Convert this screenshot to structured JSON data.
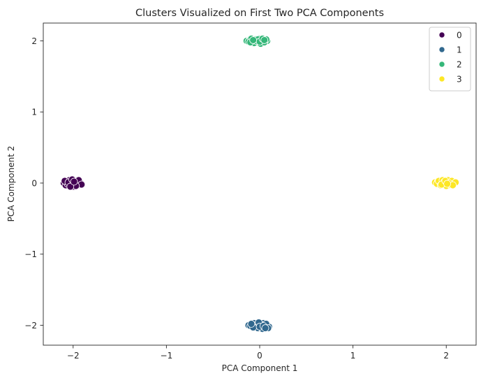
{
  "chart_data": {
    "type": "scatter",
    "title": "Clusters Visualized on First Two PCA Components",
    "xlabel": "PCA Component 1",
    "ylabel": "PCA Component 2",
    "xlim": [
      -2.32,
      2.32
    ],
    "ylim": [
      -2.28,
      2.25
    ],
    "xticks": [
      -2,
      -1,
      0,
      1,
      2
    ],
    "yticks": [
      -2,
      -1,
      0,
      1,
      2
    ],
    "xtick_labels": [
      "−2",
      "−1",
      "0",
      "1",
      "2"
    ],
    "ytick_labels": [
      "−2",
      "−1",
      "0",
      "1",
      "2"
    ],
    "grid": false,
    "legend_position": "top-right",
    "series": [
      {
        "name": "0",
        "color": "#440154",
        "points": [
          [
            -2.1,
            0.0
          ],
          [
            -2.07,
            0.02
          ],
          [
            -2.05,
            -0.02
          ],
          [
            -2.03,
            0.01
          ],
          [
            -2.01,
            -0.03
          ],
          [
            -1.99,
            0.0
          ],
          [
            -1.97,
            0.03
          ],
          [
            -1.95,
            -0.01
          ],
          [
            -1.93,
            0.02
          ],
          [
            -2.08,
            -0.03
          ],
          [
            -2.04,
            0.04
          ],
          [
            -2.0,
            -0.05
          ],
          [
            -1.96,
            -0.04
          ],
          [
            -1.92,
            0.0
          ],
          [
            -2.06,
            -0.01
          ],
          [
            -2.02,
            0.03
          ],
          [
            -1.98,
            -0.02
          ],
          [
            -1.94,
            0.04
          ],
          [
            -1.91,
            -0.02
          ],
          [
            -2.09,
            0.03
          ],
          [
            -2.05,
            0.01
          ],
          [
            -2.01,
            0.05
          ],
          [
            -1.97,
            -0.04
          ],
          [
            -2.03,
            -0.05
          ],
          [
            -1.99,
            0.02
          ]
        ]
      },
      {
        "name": "1",
        "color": "#31688e",
        "points": [
          [
            -0.12,
            -2.0
          ],
          [
            -0.08,
            -1.99
          ],
          [
            -0.05,
            -2.02
          ],
          [
            -0.03,
            -1.98
          ],
          [
            0.0,
            -2.01
          ],
          [
            0.02,
            -2.03
          ],
          [
            0.04,
            -1.97
          ],
          [
            0.06,
            -2.02
          ],
          [
            0.08,
            -2.0
          ],
          [
            0.1,
            -2.02
          ],
          [
            -0.1,
            -2.01
          ],
          [
            -0.06,
            -1.97
          ],
          [
            -0.02,
            -2.04
          ],
          [
            0.01,
            -1.99
          ],
          [
            0.03,
            -2.05
          ],
          [
            0.05,
            -2.0
          ],
          [
            0.07,
            -1.98
          ],
          [
            -0.04,
            -2.0
          ],
          [
            -0.01,
            -1.96
          ],
          [
            0.09,
            -2.04
          ],
          [
            -0.07,
            -2.03
          ],
          [
            0.0,
            -2.02
          ],
          [
            0.04,
            -2.01
          ],
          [
            -0.09,
            -1.98
          ],
          [
            0.06,
            -2.04
          ]
        ]
      },
      {
        "name": "2",
        "color": "#35b779",
        "points": [
          [
            -0.14,
            2.0
          ],
          [
            -0.11,
            2.01
          ],
          [
            -0.08,
            1.99
          ],
          [
            -0.05,
            2.02
          ],
          [
            -0.03,
            1.98
          ],
          [
            0.0,
            2.01
          ],
          [
            0.02,
            1.97
          ],
          [
            0.04,
            2.02
          ],
          [
            0.06,
            1.99
          ],
          [
            0.08,
            2.0
          ],
          [
            -0.12,
            1.99
          ],
          [
            -0.09,
            2.03
          ],
          [
            -0.06,
            1.97
          ],
          [
            -0.01,
            2.03
          ],
          [
            0.01,
            1.96
          ],
          [
            0.03,
            2.0
          ],
          [
            0.05,
            1.98
          ],
          [
            -0.04,
            2.0
          ],
          [
            -0.02,
            2.02
          ],
          [
            0.07,
            2.02
          ],
          [
            -0.1,
            1.98
          ],
          [
            0.0,
            1.99
          ],
          [
            0.03,
            2.03
          ],
          [
            -0.07,
            2.01
          ],
          [
            0.05,
            2.01
          ]
        ]
      },
      {
        "name": "3",
        "color": "#fde725",
        "points": [
          [
            1.88,
            0.01
          ],
          [
            1.91,
            0.02
          ],
          [
            1.93,
            -0.01
          ],
          [
            1.95,
            0.03
          ],
          [
            1.97,
            0.0
          ],
          [
            1.99,
            -0.02
          ],
          [
            2.01,
            0.02
          ],
          [
            2.03,
            -0.03
          ],
          [
            2.05,
            0.01
          ],
          [
            2.08,
            0.0
          ],
          [
            1.9,
            -0.01
          ],
          [
            1.92,
            0.03
          ],
          [
            1.94,
            -0.03
          ],
          [
            1.96,
            0.04
          ],
          [
            1.98,
            0.02
          ],
          [
            2.0,
            -0.04
          ],
          [
            2.02,
            0.04
          ],
          [
            2.04,
            -0.02
          ],
          [
            2.06,
            0.03
          ],
          [
            2.1,
            0.01
          ],
          [
            1.95,
            -0.02
          ],
          [
            1.99,
            0.03
          ],
          [
            2.03,
            0.0
          ],
          [
            2.07,
            -0.03
          ],
          [
            2.01,
            -0.01
          ]
        ]
      }
    ]
  }
}
